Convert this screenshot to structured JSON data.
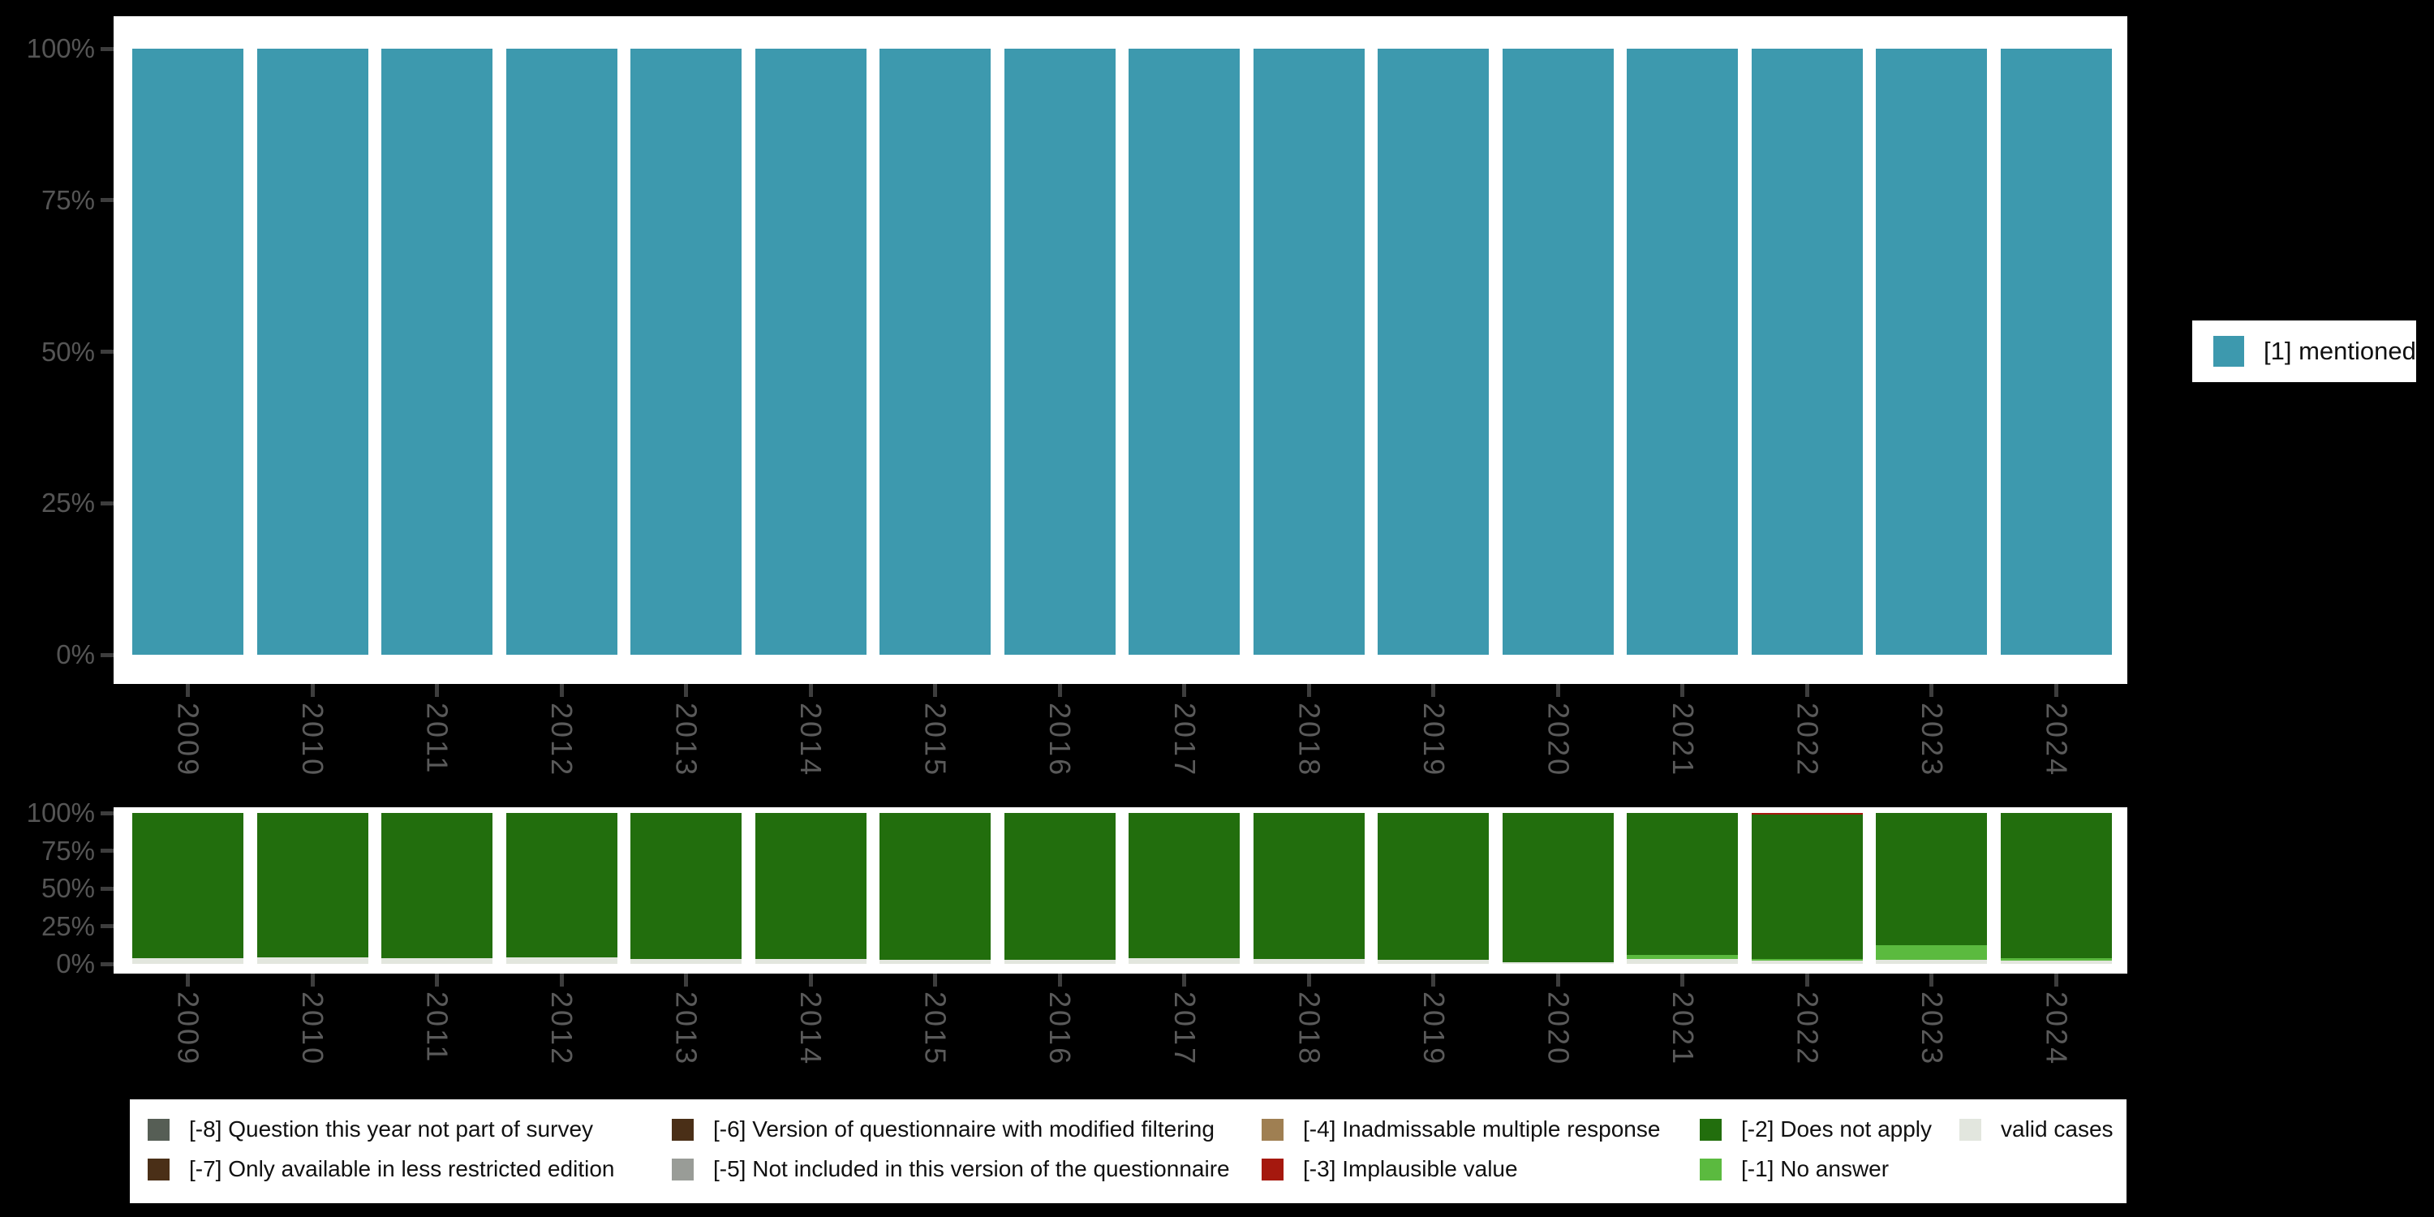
{
  "colors": {
    "background": "#000000",
    "panel": "#FFFFFF",
    "axis_text": "#555555",
    "tick_mark": "#3D3D3D",
    "legend_text": "#111111",
    "mentioned_teal": "#3D99AE",
    "does_not_apply_green": "#226E0D",
    "no_answer_light_green": "#5BBA3F",
    "implausible_red": "#A5180E",
    "valid_cases_gray": "#E2E6DE"
  },
  "chart_data": [
    {
      "id": "values-chart",
      "type": "bar",
      "stacked": true,
      "orientation": "vertical",
      "title": "",
      "xlabel": "",
      "ylabel": "",
      "grid": false,
      "ylim": [
        0,
        100
      ],
      "yticks": [
        "100%",
        "75%",
        "50%",
        "25%",
        "0%"
      ],
      "categories": [
        "2009",
        "2010",
        "2011",
        "2012",
        "2013",
        "2014",
        "2015",
        "2016",
        "2017",
        "2018",
        "2019",
        "2020",
        "2021",
        "2022",
        "2023",
        "2024"
      ],
      "series": [
        {
          "name": "[1] mentioned",
          "color": "#3D99AE",
          "values": [
            100,
            100,
            100,
            100,
            100,
            100,
            100,
            100,
            100,
            100,
            100,
            100,
            100,
            100,
            100,
            100
          ]
        }
      ],
      "legend_position": "right"
    },
    {
      "id": "missing-values-chart",
      "type": "bar",
      "stacked": true,
      "orientation": "vertical",
      "title": "",
      "xlabel": "",
      "ylabel": "",
      "grid": false,
      "ylim": [
        0,
        100
      ],
      "yticks": [
        "100%",
        "75%",
        "50%",
        "25%",
        "0%"
      ],
      "categories": [
        "2009",
        "2010",
        "2011",
        "2012",
        "2013",
        "2014",
        "2015",
        "2016",
        "2017",
        "2018",
        "2019",
        "2020",
        "2021",
        "2022",
        "2023",
        "2024"
      ],
      "series": [
        {
          "name": "[-3] Implausible value",
          "color": "#A5180E",
          "values": [
            0,
            0,
            0,
            0,
            0,
            0,
            0,
            0,
            0,
            0,
            0,
            0,
            0,
            1,
            0,
            0
          ]
        },
        {
          "name": "[-2] Does not apply",
          "color": "#226E0D",
          "values": [
            96.5,
            95.5,
            96.5,
            95.5,
            97,
            97,
            97.5,
            97.5,
            96,
            97,
            97.5,
            99,
            94,
            96,
            87.5,
            96
          ]
        },
        {
          "name": "[-1] No answer",
          "color": "#5BBA3F",
          "values": [
            0,
            0,
            0,
            0,
            0,
            0,
            0,
            0,
            0,
            0,
            0,
            0,
            3,
            1,
            10,
            2
          ]
        },
        {
          "name": "valid cases",
          "color": "#E2E6DE",
          "values": [
            3.5,
            4.5,
            3.5,
            4.5,
            3,
            3,
            2.5,
            2.5,
            4,
            3,
            2.5,
            1,
            3,
            2,
            2.5,
            2
          ]
        }
      ],
      "legend_position": "bottom"
    }
  ],
  "legend_top": {
    "label": "[1] mentioned",
    "color": "#3D99AE"
  },
  "legend_bottom": {
    "columns": [
      [
        {
          "code": "-8",
          "label": "[-8] Question this year not part of survey",
          "color": "#565E55"
        },
        {
          "code": "-7",
          "label": "[-7] Only available in less restricted edition",
          "color": "#4A2F17"
        }
      ],
      [
        {
          "code": "-6",
          "label": "[-6] Version of questionnaire with modified filtering",
          "color": "#4A2F17"
        },
        {
          "code": "-5",
          "label": "[-5] Not included in this version of the questionnaire",
          "color": "#999C97"
        }
      ],
      [
        {
          "code": "-4",
          "label": "[-4] Inadmissable multiple response",
          "color": "#9F7F52"
        },
        {
          "code": "-3",
          "label": "[-3] Implausible value",
          "color": "#A5180E"
        }
      ],
      [
        {
          "code": "-2",
          "label": "[-2] Does not apply",
          "color": "#226E0D"
        },
        {
          "code": "-1",
          "label": "[-1] No answer",
          "color": "#5BBA3F"
        }
      ],
      [
        {
          "code": "valid",
          "label": "valid cases",
          "color": "#E2E6DE"
        }
      ]
    ]
  }
}
